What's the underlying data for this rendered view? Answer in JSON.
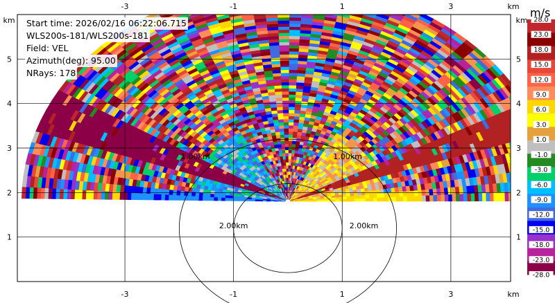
{
  "info": {
    "line1": "Start time: 2026/02/16 06:22:06.715",
    "line2": "WLS200s-181/WLS200s-181",
    "line3": "Field: VEL",
    "line4": "Azimuth(deg): 95.00",
    "line5": "NRays: 178"
  },
  "chart_data": {
    "type": "heatmap",
    "xlabel": "km",
    "ylabel": "km",
    "x_ticks": [
      "-3",
      "-1",
      "1",
      "3"
    ],
    "x_tick_values": [
      -3,
      -1,
      1,
      3
    ],
    "y_ticks": [
      "1",
      "2",
      "3",
      "4",
      "5"
    ],
    "y_tick_values": [
      1,
      2,
      3,
      4,
      5
    ],
    "xlim": [
      -4.98,
      4.1
    ],
    "ylim": [
      0,
      6
    ],
    "grid": true,
    "range_ring_labels": [
      "2.00km",
      "2.00km",
      "1.00km",
      "1.00km"
    ],
    "colorbar": {
      "title": "m/s",
      "labels": [
        "28.0",
        "23.0",
        "18.0",
        "15.0",
        "12.0",
        "9.0",
        "6.0",
        "3.0",
        "1.0",
        "-1.0",
        "-3.0",
        "-6.0",
        "-9.0",
        "-12.0",
        "-15.0",
        "-18.0",
        "-23.0",
        "-28.0"
      ],
      "colors": [
        "#c1272d",
        "#8b0000",
        "#b22222",
        "#e8473a",
        "#ff6347",
        "#ff8c5a",
        "#ffd700",
        "#ffff00",
        "#e5a13c",
        "#bfbfbf",
        "#238b22",
        "#00d06a",
        "#00bfff",
        "#1e90ff",
        "#4169e1",
        "#0000ee",
        "#9932cc",
        "#b8229c",
        "#8b0046"
      ]
    }
  }
}
